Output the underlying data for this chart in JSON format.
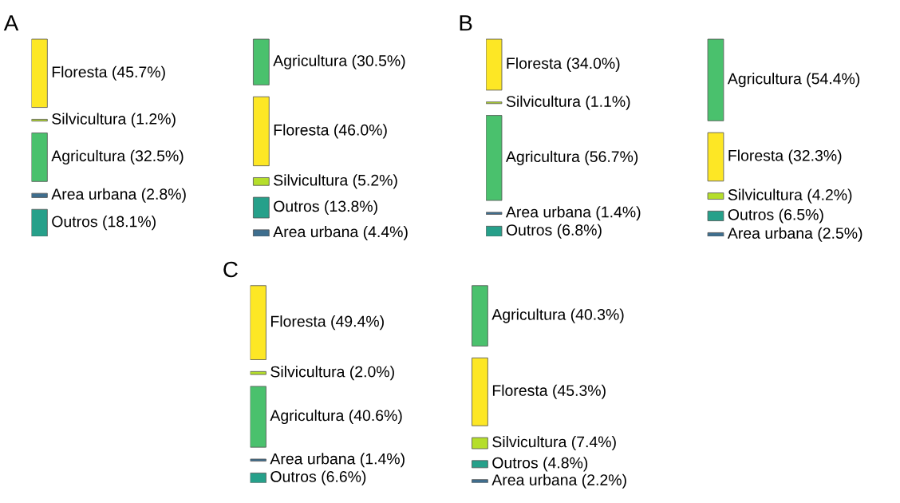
{
  "chart_data": [
    {
      "type": "other",
      "title": "A",
      "categories": [
        "Floresta",
        "Silvicultura",
        "Agricultura",
        "Area urbana",
        "Outros",
        "Agricultura",
        "Floresta",
        "Silvicultura",
        "Outros",
        "Area urbana"
      ],
      "values": [
        45.7,
        1.2,
        32.5,
        2.8,
        18.1,
        30.5,
        46.0,
        5.2,
        13.8,
        4.4
      ],
      "value_labels": [
        "(45.7%)",
        "(1.2%)",
        "(32.5%)",
        "(2.8%)",
        "(18.1%)",
        "(30.5%)",
        "(46.0%)",
        "(5.2%)",
        "(13.8%)",
        "(4.4%)"
      ],
      "colors": [
        "#fde725",
        "#b5de2b",
        "#4ac16d",
        "#3e6e8e",
        "#26a08a",
        "#4ac16d",
        "#fde725",
        "#b5de2b",
        "#26a08a",
        "#3e6e8e"
      ]
    },
    {
      "type": "other",
      "title": "B",
      "categories": [
        "Floresta",
        "Silvicultura",
        "Agricultura",
        "Area urbana",
        "Outros",
        "Agricultura",
        "Floresta",
        "Silvicultura",
        "Outros",
        "Area urbana"
      ],
      "values": [
        34.0,
        1.1,
        56.7,
        1.4,
        6.8,
        54.4,
        32.3,
        4.2,
        6.5,
        2.5
      ],
      "value_labels": [
        "(34.0%)",
        "(1.1%)",
        "(56.7%)",
        "(1.4%)",
        "(6.8%)",
        "(54.4%)",
        "(32.3%)",
        "(4.2%)",
        "(6.5%)",
        "(2.5%)"
      ],
      "colors": [
        "#fde725",
        "#b5de2b",
        "#4ac16d",
        "#3e6e8e",
        "#26a08a",
        "#4ac16d",
        "#fde725",
        "#b5de2b",
        "#26a08a",
        "#3e6e8e"
      ]
    },
    {
      "type": "other",
      "title": "C",
      "categories": [
        "Floresta",
        "Silvicultura",
        "Agricultura",
        "Area urbana",
        "Outros",
        "Agricultura",
        "Floresta",
        "Silvicultura",
        "Outros",
        "Area urbana"
      ],
      "values": [
        49.4,
        2.0,
        40.6,
        1.4,
        6.6,
        40.3,
        45.3,
        7.4,
        4.8,
        2.2
      ],
      "value_labels": [
        "(49.4%)",
        "(2.0%)",
        "(40.6%)",
        "(1.4%)",
        "(6.6%)",
        "(40.3%)",
        "(45.3%)",
        "(7.4%)",
        "(4.8%)",
        "(2.2%)"
      ],
      "colors": [
        "#fde725",
        "#b5de2b",
        "#4ac16d",
        "#3e6e8e",
        "#26a08a",
        "#4ac16d",
        "#fde725",
        "#b5de2b",
        "#26a08a",
        "#3e6e8e"
      ]
    }
  ]
}
